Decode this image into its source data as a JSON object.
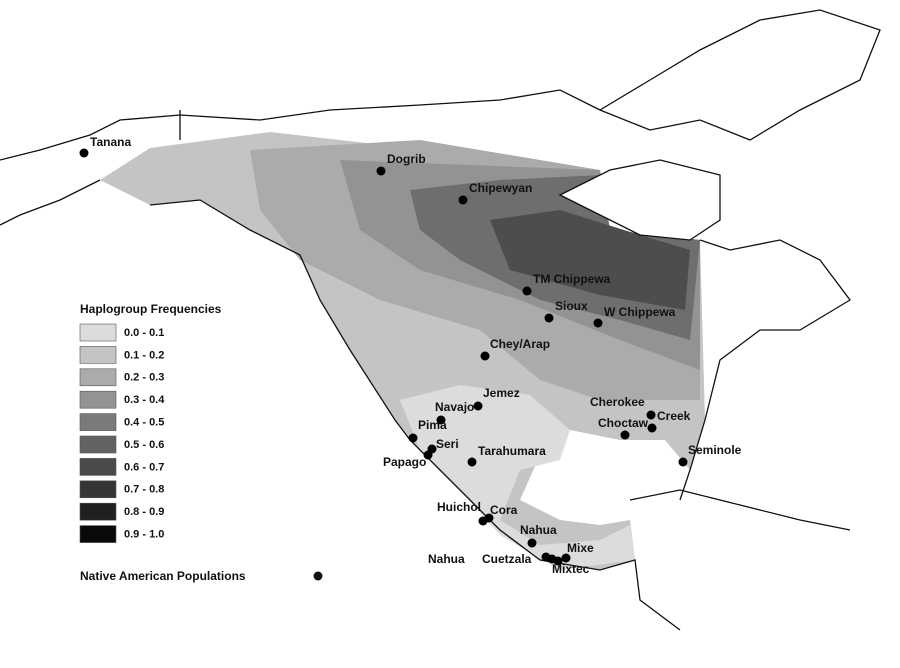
{
  "legend": {
    "title": "Haplogroup Frequencies",
    "bins": [
      {
        "label": "0.0 - 0.1",
        "color": "#dcdcdc"
      },
      {
        "label": "0.1 - 0.2",
        "color": "#c4c4c4"
      },
      {
        "label": "0.2 - 0.3",
        "color": "#ababab"
      },
      {
        "label": "0.3 - 0.4",
        "color": "#939393"
      },
      {
        "label": "0.4 - 0.5",
        "color": "#7a7a7a"
      },
      {
        "label": "0.5 - 0.6",
        "color": "#626262"
      },
      {
        "label": "0.6 - 0.7",
        "color": "#4a4a4a"
      },
      {
        "label": "0.7 - 0.8",
        "color": "#343434"
      },
      {
        "label": "0.8 - 0.9",
        "color": "#202020"
      },
      {
        "label": "0.9 - 1.0",
        "color": "#0a0a0a"
      }
    ],
    "populations_label": "Native American Populations"
  },
  "populations": [
    "Tanana",
    "Dogrib",
    "Chipewyan",
    "TM Chippewa",
    "Sioux",
    "W Chippewa",
    "Chey/Arap",
    "Jemez",
    "Navajo",
    "Pima",
    "Seri",
    "Papago",
    "Tarahumara",
    "Cherokee",
    "Creek",
    "Choctaw",
    "Seminole",
    "Huichol",
    "Cora",
    "Nahua",
    "Nahua",
    "Cuetzala",
    "Mixe",
    "Mixtec"
  ]
}
